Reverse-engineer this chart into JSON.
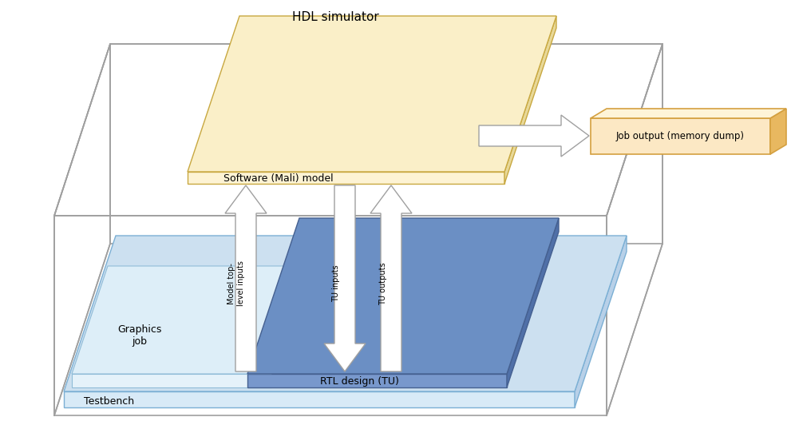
{
  "title": "HDL simulator",
  "bg_color": "#ffffff",
  "labels": {
    "testbench": "Testbench",
    "graphics_job": "Graphics\njob",
    "rtl": "RTL design (TU)",
    "software": "Software (Mali) model",
    "job_output": "Job output (memory dump)",
    "model_top": "Model top-\nlevel inputs",
    "tu_inputs": "TU inputs",
    "tu_outputs": "TU outputs"
  },
  "colors": {
    "testbench_top": "#cce0f0",
    "testbench_front": "#d8eaf7",
    "testbench_right": "#b8d0e8",
    "testbench_edge": "#7bafd4",
    "gj_top": "#ddeef8",
    "gj_front": "#e5f2fa",
    "gj_right": "#c5ddf0",
    "gj_edge": "#90bcd8",
    "rtl_top": "#6b8fc4",
    "rtl_front": "#7898cc",
    "rtl_right": "#5070a8",
    "rtl_edge": "#456090",
    "sw_top": "#faefc8",
    "sw_front": "#fdf3d4",
    "sw_right": "#e8d898",
    "sw_edge": "#c8a840",
    "job_face": "#fce8c4",
    "job_edge": "#d4a040",
    "job_right": "#e8b860",
    "job_top_face": "#fef4d8",
    "hdl_edge": "#a0a0a0",
    "arrow_face": "#ffffff",
    "arrow_edge": "#a0a0a0",
    "text": "#000000"
  },
  "font_sizes": {
    "title": 11,
    "label": 9,
    "small": 8.5
  }
}
